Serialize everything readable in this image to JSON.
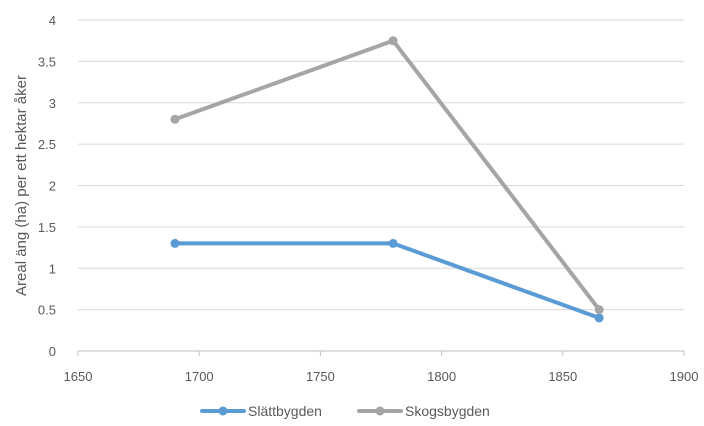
{
  "chart_data": {
    "type": "line",
    "ylabel": "Areal äng (ha) per ett hektar åker",
    "xlabel": "",
    "xlim": [
      1650,
      1900
    ],
    "ylim": [
      0,
      4
    ],
    "x_ticks": [
      "1650",
      "1700",
      "1750",
      "1800",
      "1850",
      "1900"
    ],
    "y_ticks": [
      "0",
      "0.5",
      "1",
      "1.5",
      "2",
      "2.5",
      "3",
      "3.5",
      "4"
    ],
    "grid": "horizontal",
    "legend_position": "bottom",
    "series": [
      {
        "name": "Slättbygden",
        "color": "#5b9bd5",
        "points": [
          {
            "x": 1690,
            "y": 1.3
          },
          {
            "x": 1780,
            "y": 1.3
          },
          {
            "x": 1865,
            "y": 0.4
          }
        ]
      },
      {
        "name": "Skogsbygden",
        "color": "#a5a5a5",
        "points": [
          {
            "x": 1690,
            "y": 2.8
          },
          {
            "x": 1780,
            "y": 3.75
          },
          {
            "x": 1865,
            "y": 0.5
          }
        ]
      }
    ]
  }
}
